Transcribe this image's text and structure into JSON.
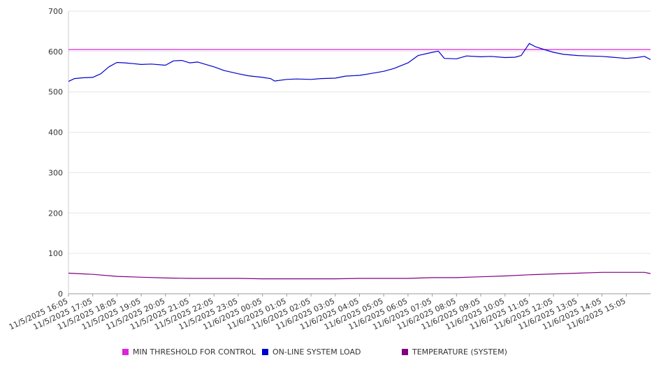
{
  "chart_data": {
    "type": "line",
    "title": "",
    "xlabel": "",
    "ylabel": "",
    "ylim": [
      0,
      700
    ],
    "yticks": [
      0,
      100,
      200,
      300,
      400,
      500,
      600,
      700
    ],
    "xlim": [
      "11/5/2025 16:05",
      "11/6/2025 16:05"
    ],
    "x_tick_labels": [
      "11/5/2025 16:05",
      "11/5/2025 17:05",
      "11/5/2025 18:05",
      "11/5/2025 19:05",
      "11/5/2025 20:05",
      "11/5/2025 21:05",
      "11/5/2025 22:05",
      "11/5/2025 23:05",
      "11/6/2025 00:05",
      "11/6/2025 01:05",
      "11/6/2025 02:05",
      "11/6/2025 03:05",
      "11/6/2025 04:05",
      "11/6/2025 05:05",
      "11/6/2025 06:05",
      "11/6/2025 07:05",
      "11/6/2025 08:05",
      "11/6/2025 09:05",
      "11/6/2025 10:05",
      "11/6/2025 11:05",
      "11/6/2025 12:05",
      "11/6/2025 13:05",
      "11/6/2025 14:05",
      "11/6/2025 15:05"
    ],
    "grid": true,
    "legend_position": "bottom",
    "series": [
      {
        "name": "MIN THRESHOLD FOR CONTROL",
        "color": "#e020e0",
        "points": [
          [
            "11/5/2025 16:05",
            605
          ],
          [
            "11/6/2025 16:05",
            605
          ]
        ]
      },
      {
        "name": "ON-LINE SYSTEM LOAD",
        "color": "#0000cc",
        "points": [
          [
            "11/5/2025 16:05",
            526
          ],
          [
            "11/5/2025 16:20",
            533
          ],
          [
            "11/5/2025 16:40",
            535
          ],
          [
            "11/5/2025 17:05",
            536
          ],
          [
            "11/5/2025 17:25",
            545
          ],
          [
            "11/5/2025 17:45",
            562
          ],
          [
            "11/5/2025 18:05",
            573
          ],
          [
            "11/5/2025 18:25",
            572
          ],
          [
            "11/5/2025 18:45",
            570
          ],
          [
            "11/5/2025 19:05",
            568
          ],
          [
            "11/5/2025 19:30",
            569
          ],
          [
            "11/5/2025 20:05",
            566
          ],
          [
            "11/5/2025 20:25",
            577
          ],
          [
            "11/5/2025 20:45",
            578
          ],
          [
            "11/5/2025 21:05",
            572
          ],
          [
            "11/5/2025 21:25",
            574
          ],
          [
            "11/5/2025 21:45",
            568
          ],
          [
            "11/5/2025 22:05",
            562
          ],
          [
            "11/5/2025 22:30",
            553
          ],
          [
            "11/5/2025 23:05",
            545
          ],
          [
            "11/5/2025 23:30",
            540
          ],
          [
            "11/6/2025 00:05",
            536
          ],
          [
            "11/6/2025 00:25",
            533
          ],
          [
            "11/6/2025 00:35",
            527
          ],
          [
            "11/6/2025 01:05",
            531
          ],
          [
            "11/6/2025 01:30",
            532
          ],
          [
            "11/6/2025 02:05",
            531
          ],
          [
            "11/6/2025 02:30",
            533
          ],
          [
            "11/6/2025 03:05",
            534
          ],
          [
            "11/6/2025 03:30",
            539
          ],
          [
            "11/6/2025 04:05",
            541
          ],
          [
            "11/6/2025 04:30",
            545
          ],
          [
            "11/6/2025 05:05",
            551
          ],
          [
            "11/6/2025 05:30",
            558
          ],
          [
            "11/6/2025 06:05",
            572
          ],
          [
            "11/6/2025 06:30",
            590
          ],
          [
            "11/6/2025 07:05",
            598
          ],
          [
            "11/6/2025 07:20",
            601
          ],
          [
            "11/6/2025 07:35",
            583
          ],
          [
            "11/6/2025 08:05",
            582
          ],
          [
            "11/6/2025 08:30",
            589
          ],
          [
            "11/6/2025 09:05",
            587
          ],
          [
            "11/6/2025 09:30",
            588
          ],
          [
            "11/6/2025 10:05",
            585
          ],
          [
            "11/6/2025 10:30",
            586
          ],
          [
            "11/6/2025 10:45",
            590
          ],
          [
            "11/6/2025 11:05",
            620
          ],
          [
            "11/6/2025 11:20",
            612
          ],
          [
            "11/6/2025 11:45",
            604
          ],
          [
            "11/6/2025 12:05",
            598
          ],
          [
            "11/6/2025 12:30",
            593
          ],
          [
            "11/6/2025 13:05",
            590
          ],
          [
            "11/6/2025 13:30",
            589
          ],
          [
            "11/6/2025 14:05",
            588
          ],
          [
            "11/6/2025 14:30",
            586
          ],
          [
            "11/6/2025 15:05",
            583
          ],
          [
            "11/6/2025 15:30",
            585
          ],
          [
            "11/6/2025 15:50",
            588
          ],
          [
            "11/6/2025 16:05",
            580
          ]
        ]
      },
      {
        "name": "TEMPERATURE (SYSTEM)",
        "color": "#800080",
        "points": [
          [
            "11/5/2025 16:05",
            51
          ],
          [
            "11/5/2025 17:05",
            48
          ],
          [
            "11/5/2025 18:05",
            43
          ],
          [
            "11/5/2025 19:05",
            41
          ],
          [
            "11/5/2025 20:05",
            39
          ],
          [
            "11/5/2025 21:05",
            38
          ],
          [
            "11/5/2025 22:05",
            38
          ],
          [
            "11/5/2025 23:05",
            38
          ],
          [
            "11/6/2025 00:05",
            37
          ],
          [
            "11/6/2025 01:05",
            37
          ],
          [
            "11/6/2025 02:05",
            37
          ],
          [
            "11/6/2025 03:05",
            37
          ],
          [
            "11/6/2025 04:05",
            38
          ],
          [
            "11/6/2025 05:05",
            38
          ],
          [
            "11/6/2025 06:05",
            38
          ],
          [
            "11/6/2025 07:05",
            40
          ],
          [
            "11/6/2025 08:05",
            40
          ],
          [
            "11/6/2025 09:05",
            42
          ],
          [
            "11/6/2025 10:05",
            44
          ],
          [
            "11/6/2025 11:05",
            47
          ],
          [
            "11/6/2025 12:05",
            49
          ],
          [
            "11/6/2025 13:05",
            51
          ],
          [
            "11/6/2025 14:05",
            53
          ],
          [
            "11/6/2025 15:05",
            53
          ],
          [
            "11/6/2025 15:50",
            53
          ],
          [
            "11/6/2025 16:05",
            50
          ]
        ]
      }
    ]
  }
}
